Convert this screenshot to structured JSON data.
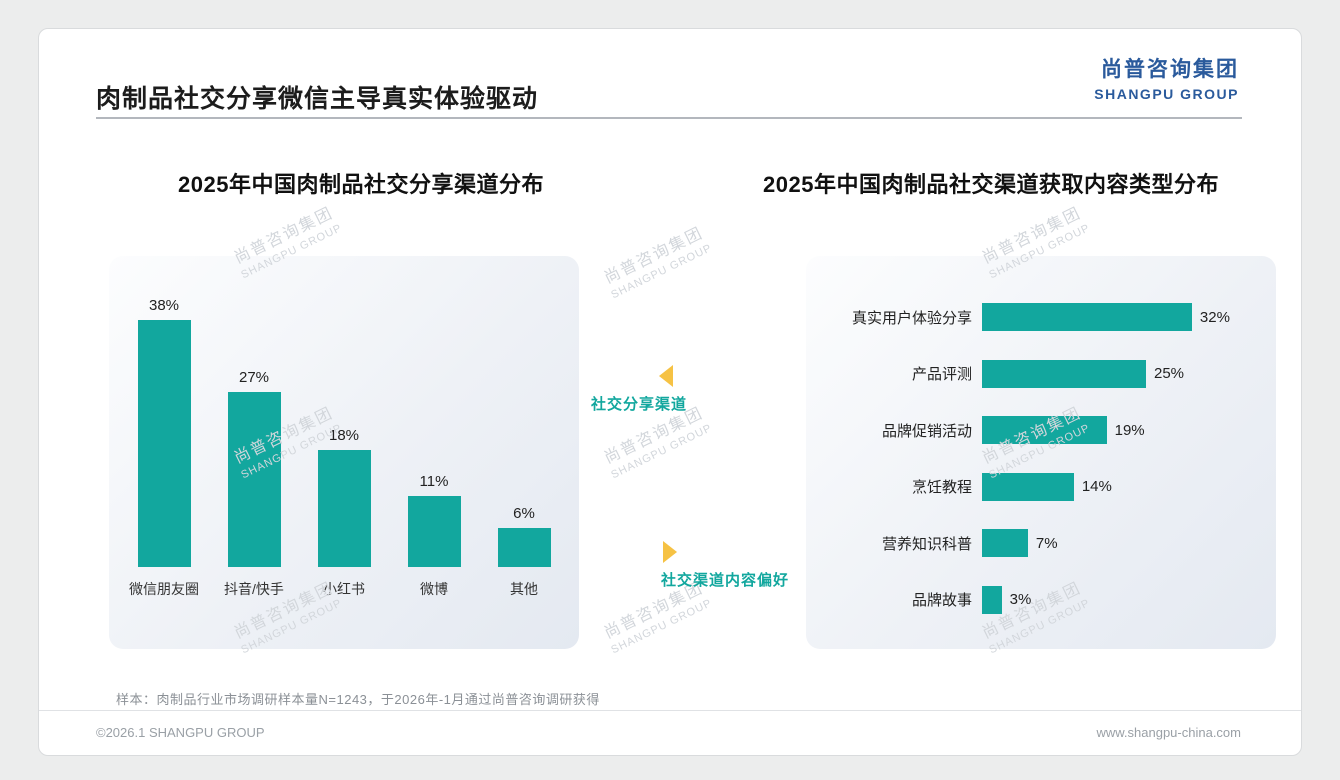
{
  "page": {
    "title": "肉制品社交分享微信主导真实体验驱动",
    "logo": {
      "cn": "尚普咨询集团",
      "en": "SHANGPU GROUP"
    },
    "watermark": {
      "cn": "尚普咨询集团",
      "en": "SHANGPU GROUP"
    },
    "sample_note": "样本：肉制品行业市场调研样本量N=1243，于2026年-1月通过尚普咨询调研获得",
    "footer": {
      "left": "©2026.1 SHANGPU GROUP",
      "right": "www.shangpu-china.com"
    }
  },
  "annotations": {
    "left": "社交分享渠道",
    "right": "社交渠道内容偏好"
  },
  "colors": {
    "bar": "#12a79e",
    "accent_teal": "#12a79e",
    "arrow_yellow": "#f6c244",
    "logo_blue": "#2a5a9c",
    "title_dark": "#1c1c1c"
  },
  "chart_data": [
    {
      "type": "bar",
      "orientation": "vertical",
      "title": "2025年中国肉制品社交分享渠道分布",
      "categories": [
        "微信朋友圈",
        "抖音/快手",
        "小红书",
        "微博",
        "其他"
      ],
      "values": [
        38,
        27,
        18,
        11,
        6
      ],
      "unit": "%",
      "ylim": [
        0,
        40
      ],
      "grid": false,
      "value_labels": true,
      "bar_color": "#12a79e"
    },
    {
      "type": "bar",
      "orientation": "horizontal",
      "title": "2025年中国肉制品社交渠道获取内容类型分布",
      "categories": [
        "真实用户体验分享",
        "产品评测",
        "品牌促销活动",
        "烹饪教程",
        "营养知识科普",
        "品牌故事"
      ],
      "values": [
        32,
        25,
        19,
        14,
        7,
        3
      ],
      "unit": "%",
      "xlim": [
        0,
        35
      ],
      "grid": false,
      "value_labels": true,
      "bar_color": "#12a79e"
    }
  ]
}
